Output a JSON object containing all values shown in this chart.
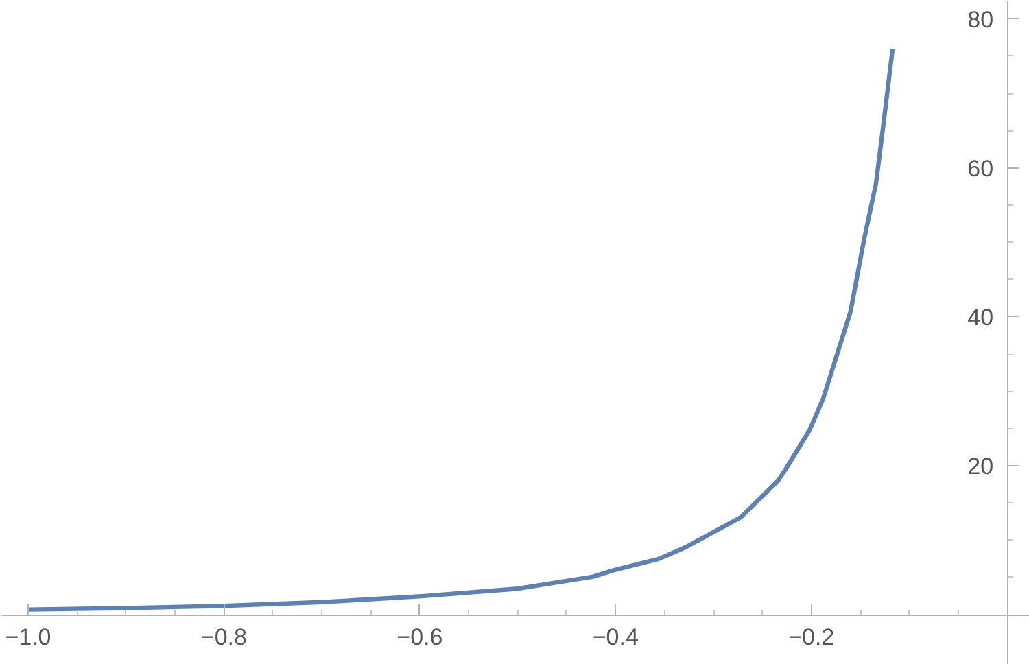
{
  "chart_data": {
    "type": "line",
    "x": [
      -1.0,
      -0.9,
      -0.8,
      -0.7,
      -0.598,
      -0.5,
      -0.4235,
      -0.4016,
      -0.356,
      -0.328,
      -0.272,
      -0.234,
      -0.225,
      -0.2018,
      -0.188,
      -0.16,
      -0.146,
      -0.134,
      -0.127,
      -0.117
    ],
    "series": [
      {
        "color": "#5e81b5",
        "values": [
          0.7,
          0.9,
          1.2,
          1.7,
          2.5,
          3.5,
          5.1,
          6.0,
          7.5,
          9.1,
          13.1,
          18.0,
          19.8,
          24.8,
          29.0,
          40.7,
          50.5,
          57.9,
          65.2,
          76.0
        ]
      }
    ],
    "xlim": [
      -1.028,
      0.023
    ],
    "ylim": [
      -6.7,
      82.45
    ],
    "xticks": [
      {
        "value": -1.0,
        "label": "−1.0"
      },
      {
        "value": -0.95,
        "label": null
      },
      {
        "value": -0.9,
        "label": null
      },
      {
        "value": -0.85,
        "label": null
      },
      {
        "value": -0.8,
        "label": "−0.8"
      },
      {
        "value": -0.75,
        "label": null
      },
      {
        "value": -0.7,
        "label": null
      },
      {
        "value": -0.65,
        "label": null
      },
      {
        "value": -0.6,
        "label": "−0.6"
      },
      {
        "value": -0.55,
        "label": null
      },
      {
        "value": -0.5,
        "label": null
      },
      {
        "value": -0.45,
        "label": null
      },
      {
        "value": -0.4,
        "label": "−0.4"
      },
      {
        "value": -0.35,
        "label": null
      },
      {
        "value": -0.3,
        "label": null
      },
      {
        "value": -0.25,
        "label": null
      },
      {
        "value": -0.2,
        "label": "−0.2"
      },
      {
        "value": -0.15,
        "label": null
      },
      {
        "value": -0.1,
        "label": null
      },
      {
        "value": -0.05,
        "label": null
      }
    ],
    "yticks": [
      {
        "value": 5,
        "label": null
      },
      {
        "value": 10,
        "label": null
      },
      {
        "value": 15,
        "label": null
      },
      20,
      {
        "value": 25,
        "label": null
      },
      {
        "value": 30,
        "label": null
      },
      {
        "value": 35,
        "label": null
      },
      40,
      {
        "value": 45,
        "label": null
      },
      {
        "value": 50,
        "label": null
      },
      {
        "value": 55,
        "label": null
      },
      60,
      {
        "value": 65,
        "label": null
      },
      {
        "value": 70,
        "label": null
      },
      {
        "value": 75,
        "label": null
      },
      80
    ],
    "grid": false,
    "marker": "none",
    "line_style": "solid"
  }
}
